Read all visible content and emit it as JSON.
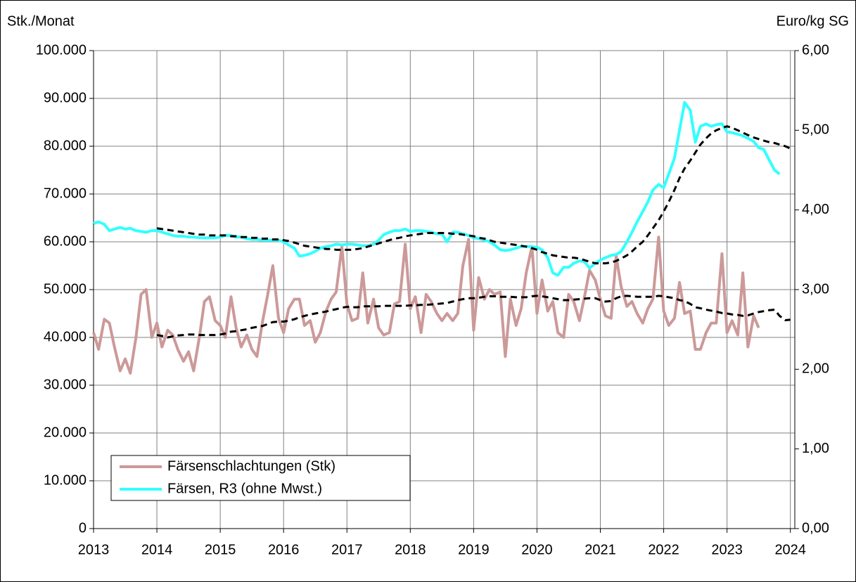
{
  "chart_data": {
    "type": "line",
    "y_label": "Stk./Monat",
    "y2_label": "Euro/kg SG",
    "x": [
      2013,
      2013.08,
      2013.17,
      2013.25,
      2013.33,
      2013.42,
      2013.5,
      2013.58,
      2013.67,
      2013.75,
      2013.83,
      2013.92,
      2014,
      2014.08,
      2014.17,
      2014.25,
      2014.33,
      2014.42,
      2014.5,
      2014.58,
      2014.67,
      2014.75,
      2014.83,
      2014.92,
      2015,
      2015.08,
      2015.17,
      2015.25,
      2015.33,
      2015.42,
      2015.5,
      2015.58,
      2015.67,
      2015.75,
      2015.83,
      2015.92,
      2016,
      2016.08,
      2016.17,
      2016.25,
      2016.33,
      2016.42,
      2016.5,
      2016.58,
      2016.67,
      2016.75,
      2016.83,
      2016.92,
      2017,
      2017.08,
      2017.17,
      2017.25,
      2017.33,
      2017.42,
      2017.5,
      2017.58,
      2017.67,
      2017.75,
      2017.83,
      2017.92,
      2018,
      2018.08,
      2018.17,
      2018.25,
      2018.33,
      2018.42,
      2018.5,
      2018.58,
      2018.67,
      2018.75,
      2018.83,
      2018.92,
      2019,
      2019.08,
      2019.17,
      2019.25,
      2019.33,
      2019.42,
      2019.5,
      2019.58,
      2019.67,
      2019.75,
      2019.83,
      2019.92,
      2020,
      2020.08,
      2020.17,
      2020.25,
      2020.33,
      2020.42,
      2020.5,
      2020.58,
      2020.67,
      2020.75,
      2020.83,
      2020.92,
      2021,
      2021.08,
      2021.17,
      2021.25,
      2021.33,
      2021.42,
      2021.5,
      2021.58,
      2021.67,
      2021.75,
      2021.83,
      2021.92,
      2022,
      2022.08,
      2022.17,
      2022.25,
      2022.33,
      2022.42,
      2022.5,
      2022.58,
      2022.67,
      2022.75,
      2022.83,
      2022.92,
      2023,
      2023.08,
      2023.17,
      2023.25,
      2023.33,
      2023.42,
      2023.5,
      2023.58,
      2023.67,
      2023.75,
      2023.83,
      2023.92,
      2024
    ],
    "xlim": [
      2013,
      2024.07
    ],
    "xticks": [
      2013,
      2014,
      2015,
      2016,
      2017,
      2018,
      2019,
      2020,
      2021,
      2022,
      2023,
      2024
    ],
    "ylim": [
      0,
      100000
    ],
    "yticks": [
      0,
      {
        "value": 10000,
        "label": "10.000"
      },
      {
        "value": 20000,
        "label": "20.000"
      },
      {
        "value": 30000,
        "label": "30.000"
      },
      {
        "value": 40000,
        "label": "40.000"
      },
      {
        "value": 50000,
        "label": "50.000"
      },
      {
        "value": 60000,
        "label": "60.000"
      },
      {
        "value": 70000,
        "label": "70.000"
      },
      {
        "value": 80000,
        "label": "80.000"
      },
      {
        "value": 90000,
        "label": "90.000"
      },
      {
        "value": 100000,
        "label": "100.000"
      }
    ],
    "y2lim": [
      0,
      6
    ],
    "y2ticks": [
      {
        "value": 0,
        "label": "0,00"
      },
      {
        "value": 1,
        "label": "1,00"
      },
      {
        "value": 2,
        "label": "2,00"
      },
      {
        "value": 3,
        "label": "3,00"
      },
      {
        "value": 4,
        "label": "4,00"
      },
      {
        "value": 5,
        "label": "5,00"
      },
      {
        "value": 6,
        "label": "6,00"
      }
    ],
    "grid": true,
    "legend": "lower left",
    "series": [
      {
        "name": "Färsenschlachtungen (Stk)",
        "color": "#cc9999",
        "dashed": false,
        "values": [
          41000,
          37500,
          43800,
          43000,
          38000,
          33000,
          35500,
          32500,
          40000,
          49000,
          50000,
          40000,
          43000,
          38000,
          41500,
          40500,
          37500,
          35000,
          37000,
          33000,
          40000,
          47500,
          48500,
          43500,
          42500,
          40000,
          48500,
          42000,
          38000,
          40500,
          37500,
          36000,
          43500,
          49000,
          55000,
          44000,
          41000,
          46000,
          48000,
          48000,
          42500,
          43500,
          39000,
          41000,
          45500,
          48000,
          49500,
          59000,
          47000,
          43500,
          44000,
          53500,
          43000,
          48000,
          42000,
          40500,
          41000,
          47000,
          47500,
          59500,
          46000,
          48500,
          41000,
          49000,
          47500,
          45000,
          43500,
          45000,
          43500,
          45000,
          55000,
          60500,
          41500,
          52500,
          48000,
          50000,
          49000,
          49500,
          36000,
          48000,
          42500,
          46000,
          53500,
          59000,
          45000,
          52000,
          45500,
          47500,
          41000,
          40000,
          49000,
          47500,
          43500,
          48500,
          54000,
          52000,
          48000,
          44500,
          44000,
          57000,
          50500,
          46500,
          47500,
          45000,
          43000,
          46000,
          48000,
          61000,
          45500,
          42500,
          44000,
          51500,
          45000,
          45500,
          37500,
          37500,
          41000,
          43000,
          43000,
          57500,
          41000,
          43500,
          40500,
          53500,
          38000,
          44500,
          42000,
          null,
          null,
          null,
          null,
          null,
          null
        ]
      },
      {
        "name": "Färsen, R3 (ohne Mwst.)",
        "color": "#33ffff",
        "axis": "y2",
        "dashed": false,
        "values": [
          3.83,
          3.85,
          3.82,
          3.74,
          3.76,
          3.78,
          3.76,
          3.77,
          3.74,
          3.73,
          3.72,
          3.74,
          3.74,
          3.72,
          3.7,
          3.68,
          3.67,
          3.67,
          3.66,
          3.66,
          3.65,
          3.65,
          3.65,
          3.65,
          3.66,
          3.68,
          3.68,
          3.66,
          3.66,
          3.64,
          3.63,
          3.63,
          3.62,
          3.62,
          3.62,
          3.62,
          3.6,
          3.56,
          3.52,
          3.42,
          3.43,
          3.45,
          3.48,
          3.52,
          3.54,
          3.55,
          3.57,
          3.56,
          3.57,
          3.57,
          3.56,
          3.55,
          3.55,
          3.57,
          3.62,
          3.69,
          3.72,
          3.74,
          3.74,
          3.76,
          3.73,
          3.74,
          3.74,
          3.73,
          3.72,
          3.7,
          3.7,
          3.6,
          3.72,
          3.72,
          3.7,
          3.68,
          3.65,
          3.64,
          3.62,
          3.6,
          3.56,
          3.5,
          3.49,
          3.5,
          3.52,
          3.54,
          3.54,
          3.54,
          3.53,
          3.5,
          3.4,
          3.21,
          3.18,
          3.28,
          3.28,
          3.33,
          3.36,
          3.35,
          3.27,
          3.33,
          3.37,
          3.4,
          3.43,
          3.44,
          3.48,
          3.6,
          3.72,
          3.85,
          3.98,
          4.1,
          4.25,
          4.32,
          4.28,
          4.45,
          4.65,
          5.0,
          5.35,
          5.25,
          4.85,
          5.05,
          5.08,
          5.05,
          5.07,
          5.08,
          4.98,
          4.97,
          4.95,
          4.93,
          4.9,
          4.86,
          4.78,
          4.76,
          4.62,
          4.5,
          4.45,
          null,
          null
        ]
      },
      {
        "color": "#000000",
        "dashed": true,
        "values": [
          null,
          null,
          null,
          null,
          null,
          null,
          null,
          null,
          null,
          null,
          null,
          null,
          40500,
          40300,
          40000,
          40200,
          40400,
          40500,
          40600,
          40600,
          40500,
          40500,
          40500,
          40500,
          40600,
          40800,
          41200,
          41300,
          41500,
          41700,
          42000,
          42200,
          42400,
          42800,
          43200,
          43300,
          43300,
          43500,
          43800,
          44200,
          44500,
          44800,
          45000,
          45200,
          45400,
          45700,
          45900,
          46200,
          46400,
          46300,
          46300,
          46500,
          46500,
          46500,
          46500,
          46600,
          46600,
          46600,
          46600,
          46600,
          46700,
          46700,
          46800,
          46800,
          46900,
          47000,
          47100,
          47200,
          47500,
          47800,
          48000,
          48200,
          48200,
          48300,
          48500,
          48600,
          48600,
          48500,
          48500,
          48500,
          48400,
          48400,
          48400,
          48600,
          48700,
          48600,
          48400,
          48200,
          48000,
          47800,
          47800,
          47900,
          48000,
          48100,
          48200,
          48200,
          47800,
          47500,
          47600,
          48200,
          48600,
          48700,
          48600,
          48500,
          48500,
          48500,
          48500,
          48700,
          48600,
          48400,
          48200,
          47800,
          47600,
          47000,
          46300,
          46100,
          45800,
          45600,
          45400,
          45100,
          45000,
          44800,
          44700,
          44500,
          44600,
          45000,
          45300,
          45500,
          45700,
          45800,
          44500,
          43600,
          43700
        ]
      },
      {
        "color": "#000000",
        "axis": "y2",
        "dashed": true,
        "values": [
          null,
          null,
          null,
          null,
          null,
          null,
          null,
          null,
          null,
          null,
          null,
          null,
          3.77,
          3.76,
          3.75,
          3.74,
          3.73,
          3.72,
          3.71,
          3.7,
          3.69,
          3.69,
          3.68,
          3.68,
          3.68,
          3.68,
          3.67,
          3.67,
          3.66,
          3.66,
          3.65,
          3.65,
          3.64,
          3.64,
          3.63,
          3.63,
          3.62,
          3.61,
          3.59,
          3.57,
          3.55,
          3.54,
          3.53,
          3.52,
          3.51,
          3.51,
          3.5,
          3.5,
          3.5,
          3.5,
          3.51,
          3.52,
          3.54,
          3.56,
          3.58,
          3.6,
          3.62,
          3.64,
          3.65,
          3.67,
          3.68,
          3.69,
          3.7,
          3.71,
          3.71,
          3.71,
          3.71,
          3.71,
          3.7,
          3.7,
          3.69,
          3.68,
          3.67,
          3.65,
          3.64,
          3.62,
          3.6,
          3.59,
          3.58,
          3.57,
          3.56,
          3.55,
          3.54,
          3.52,
          3.5,
          3.47,
          3.45,
          3.43,
          3.42,
          3.41,
          3.4,
          3.4,
          3.39,
          3.37,
          3.35,
          3.33,
          3.33,
          3.33,
          3.34,
          3.36,
          3.39,
          3.43,
          3.48,
          3.54,
          3.6,
          3.68,
          3.77,
          3.87,
          3.98,
          4.1,
          4.25,
          4.4,
          4.52,
          4.62,
          4.72,
          4.82,
          4.9,
          4.96,
          5.0,
          5.03,
          5.05,
          5.03,
          5.0,
          4.97,
          4.94,
          4.91,
          4.89,
          4.87,
          4.85,
          4.84,
          4.82,
          4.8,
          4.77
        ]
      }
    ]
  }
}
